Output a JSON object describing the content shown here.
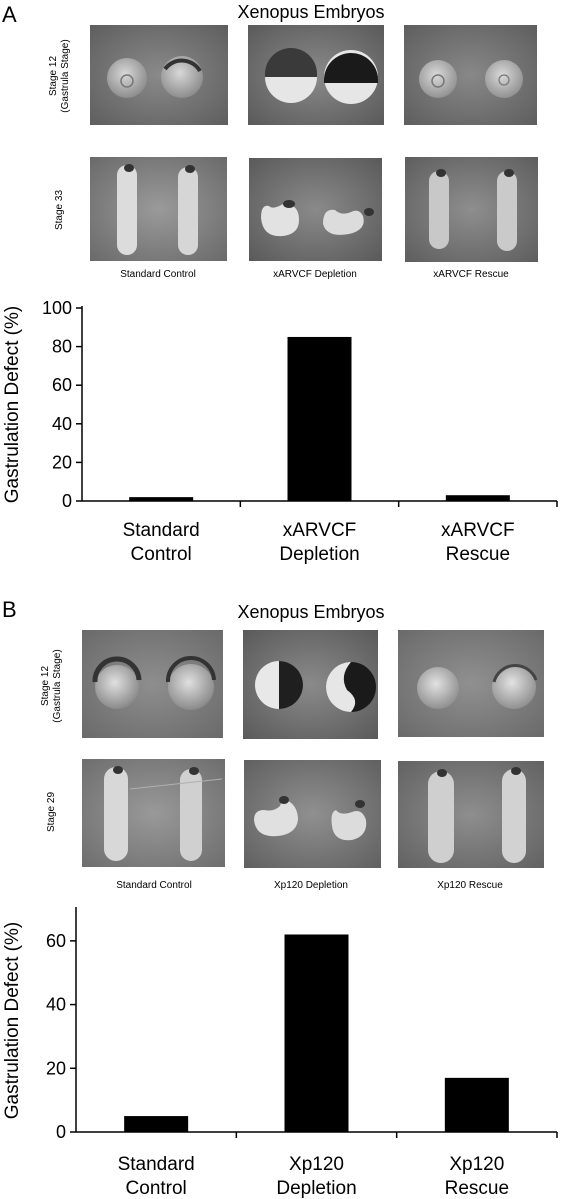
{
  "panels": [
    {
      "letter": "A",
      "title": "Xenopus Embryos",
      "rows": [
        {
          "label_line1": "Stage 12",
          "label_line2": "(Gastrula Stage)"
        },
        {
          "label_line1": "Stage 33",
          "label_line2": ""
        }
      ],
      "conditions": [
        "Standard Control",
        "xARVCF Depletion",
        "xARVCF Rescue"
      ]
    },
    {
      "letter": "B",
      "title": "Xenopus Embryos",
      "rows": [
        {
          "label_line1": "Stage 12",
          "label_line2": "(Gastrula Stage)"
        },
        {
          "label_line1": "Stage 29",
          "label_line2": ""
        }
      ],
      "conditions": [
        "Standard Control",
        "Xp120 Depletion",
        "Xp120 Rescue"
      ]
    }
  ],
  "chart_data": [
    {
      "type": "bar",
      "categories": [
        [
          "Standard",
          "Control"
        ],
        [
          "xARVCF",
          "Depletion"
        ],
        [
          "xARVCF",
          "Rescue"
        ]
      ],
      "values": [
        2,
        85,
        3
      ],
      "ylabel": "Gastrulation Defect (%)",
      "xlabel": "",
      "ylim": [
        0,
        100
      ],
      "yticks": [
        0,
        20,
        40,
        60,
        80,
        100
      ],
      "bar_color": "#000000",
      "grid": false
    },
    {
      "type": "bar",
      "categories": [
        [
          "Standard",
          "Control"
        ],
        [
          "Xp120",
          "Depletion"
        ],
        [
          "Xp120",
          "Rescue"
        ]
      ],
      "values": [
        5,
        62,
        17
      ],
      "ylabel": "Gastrulation Defect (%)",
      "xlabel": "",
      "ylim": [
        0,
        70
      ],
      "yticks": [
        0,
        20,
        40,
        60
      ],
      "bar_color": "#000000",
      "grid": false
    }
  ]
}
